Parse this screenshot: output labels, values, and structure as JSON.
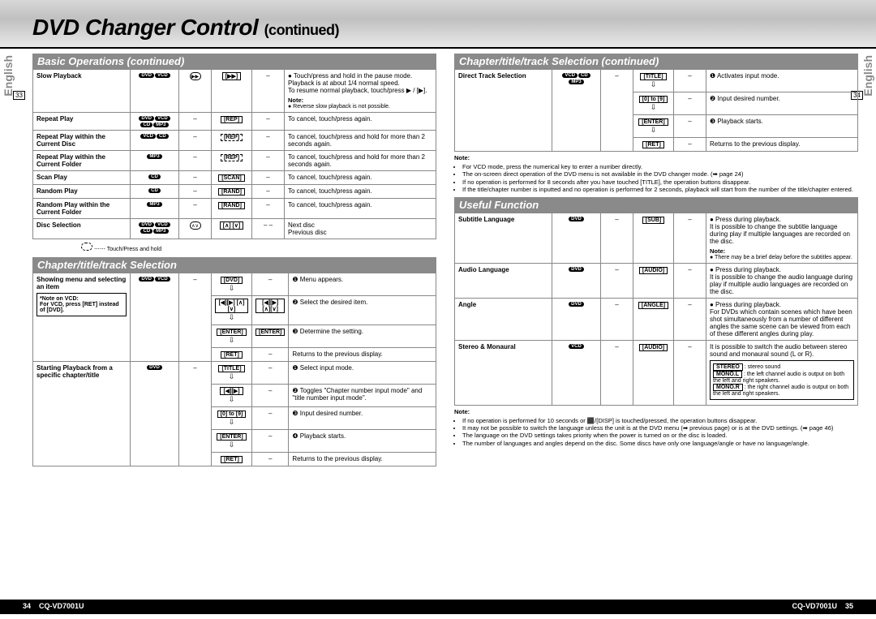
{
  "page": {
    "title_main": "DVD Changer Control",
    "title_cont": "(continued)",
    "side_label": "English",
    "page_left_box": "33",
    "page_right_box": "34",
    "footer_model": "CQ-VD7001U",
    "footer_page_left": "34",
    "footer_page_right": "35"
  },
  "sections": {
    "basic_ops": "Basic Operations  (continued)",
    "chapter_sel": "Chapter/title/track Selection",
    "chapter_sel_cont": "Chapter/title/track Selection  (continued)",
    "useful_fn": "Useful Function"
  },
  "left": {
    "rows": [
      {
        "label": "Slow Playback",
        "discs": [
          "DVD",
          "VCD"
        ],
        "b1": "▶▶",
        "b2": "[▶▶]",
        "b3": "–",
        "desc": "● Touch/press and hold in the pause mode.\nPlayback is at about 1/4 normal speed.\nTo resume normal playback, touch/press ▶ / [▶].",
        "note_label": "Note:",
        "note": "● Reverse slow playback is not possible."
      },
      {
        "label": "Repeat Play",
        "discs": [
          "DVD",
          "VCD",
          "CD",
          "MP3"
        ],
        "b1": "–",
        "b2": "[REP]",
        "b3": "–",
        "desc": "To cancel, touch/press again."
      },
      {
        "label": "Repeat Play within the Current Disc",
        "discs": [
          "VCD",
          "CD"
        ],
        "b1": "–",
        "b2": "[REP]",
        "b2dash": true,
        "b3": "–",
        "desc": "To cancel, touch/press and hold for more than 2 seconds again."
      },
      {
        "label": "Repeat Play within the Current Folder",
        "discs": [
          "MP3"
        ],
        "b1": "–",
        "b2": "[REP]",
        "b2dash": true,
        "b3": "–",
        "desc": "To cancel, touch/press and hold for more than 2 seconds again."
      },
      {
        "label": "Scan Play",
        "discs": [
          "CD"
        ],
        "b1": "–",
        "b2": "[SCAN]",
        "b3": "–",
        "desc": "To cancel, touch/press again."
      },
      {
        "label": "Random Play",
        "discs": [
          "CD"
        ],
        "b1": "–",
        "b2": "[RAND]",
        "b3": "–",
        "desc": "To cancel, touch/press again."
      },
      {
        "label": "Random Play within the Current Folder",
        "discs": [
          "MP3"
        ],
        "b1": "–",
        "b2": "[RAND]",
        "b3": "–",
        "desc": "To cancel, touch/press again."
      },
      {
        "label": "Disc Selection",
        "discs": [
          "DVD",
          "VCD",
          "CD",
          "MP3"
        ],
        "b1": "∧∨",
        "b2": "[∧] [∨]",
        "b3": "– –",
        "desc": "Next disc\nPrevious disc"
      }
    ],
    "legend": "⋯⋯ Touch/Press and hold",
    "menu_rows": [
      {
        "label": "Showing menu and selecting an item",
        "subnote": "*Note on VCD:\nFor VCD, press [RET] instead of [DVD].",
        "discs": [
          "DVD",
          "VCD"
        ],
        "steps": [
          {
            "b2": "[DVD]",
            "b3": "–",
            "desc": "❶ Menu appears."
          },
          {
            "b2": "[◀][▶] [∧][∨]",
            "b3": "[◀][▶] [∧][∨]",
            "desc": "❷ Select the desired item."
          },
          {
            "b2": "[ENTER]",
            "b3": "[ENTER]",
            "desc": "❸ Determine the setting."
          },
          {
            "b2": "[RET]",
            "b3": "–",
            "desc": "Returns to the previous display."
          }
        ]
      },
      {
        "label": "Starting Playback from a specific chapter/title",
        "discs": [
          "DVD"
        ],
        "steps": [
          {
            "b2": "[TITLE]",
            "b3": "–",
            "desc": "❶ Select input mode."
          },
          {
            "b2": "[◀][▶]",
            "b3": "–",
            "desc": "❷ Toggles \"Chapter number input mode\" and \"title number input mode\"."
          },
          {
            "b2": "[0] to [9]",
            "b3": "–",
            "desc": "❸ Input desired number."
          },
          {
            "b2": "[ENTER]",
            "b3": "–",
            "desc": "❹ Playback starts."
          },
          {
            "b2": "[RET]",
            "b3": "–",
            "desc": "Returns to the previous display."
          }
        ]
      }
    ]
  },
  "right": {
    "direct_track": {
      "label": "Direct Track Selection",
      "discs": [
        "VCD",
        "CD",
        "MP3"
      ],
      "steps": [
        {
          "b2": "[TITLE]",
          "b3": "–",
          "desc": "❶ Activates input mode."
        },
        {
          "b2": "[0] to [9]",
          "b3": "–",
          "desc": "❷ Input desired number."
        },
        {
          "b2": "[ENTER]",
          "b3": "–",
          "desc": "❸ Playback starts."
        },
        {
          "b2": "[RET]",
          "b3": "–",
          "desc": "Returns to the previous display."
        }
      ]
    },
    "note1_label": "Note:",
    "note1": [
      "For VCD mode, press the numerical key to enter a number directly.",
      "The on-screen direct operation of the DVD menu is not available in the DVD changer mode. (➡ page 24)",
      "If no operation is performed for 8 seconds after you have touched [TITLE], the operation buttons disappear.",
      "If the title/chapter number is inputted and no operation is performed for 2 seconds, playback will start from the number of the title/chapter entered."
    ],
    "useful": [
      {
        "label": "Subtitle Language",
        "discs": [
          "DVD"
        ],
        "b2": "[SUB]",
        "desc": "● Press during playback.\nIt is possible to change the subtitle language during play if multiple languages are recorded on the disc.",
        "note_label": "Note:",
        "note": "● There may be a brief delay before the subtitles appear."
      },
      {
        "label": "Audio Language",
        "discs": [
          "DVD"
        ],
        "b2": "[AUDIO]",
        "desc": "● Press during playback.\nIt is possible to change the audio language during play if multiple audio languages are recorded on the disc."
      },
      {
        "label": "Angle",
        "discs": [
          "DVD"
        ],
        "b2": "[ANGLE]",
        "desc": "● Press during playback.\nFor DVDs which contain scenes which have been shot simultaneously from a number of different angles the same scene can be viewed from each of these different angles during play."
      },
      {
        "label": "Stereo & Monaural",
        "discs": [
          "VCD"
        ],
        "b2": "[AUDIO]",
        "desc": "It is possible to switch the audio between stereo sound and monaural sound (L or R).",
        "modes": [
          {
            "k": "STEREO",
            "v": ": stereo sound"
          },
          {
            "k": "MONO.L",
            "v": ": the left channel audio is output on both the left and right speakers."
          },
          {
            "k": "MONO.R",
            "v": ": the right channel audio is output on both the left and right speakers."
          }
        ]
      }
    ],
    "note2_label": "Note:",
    "note2": [
      "If no operation is performed for 10 seconds or ⬛/[DISP] is touched/pressed, the operation buttons disappear.",
      "It may not be possible to switch the language unless the unit is at the DVD menu (➡ previous page) or is at the DVD settings. (➡ page 46)",
      "The language on the DVD settings takes priority when the power is turned on or the disc is loaded.",
      "The number of languages and angles depend on the disc. Some discs have only one language/angle or have no language/angle."
    ]
  }
}
